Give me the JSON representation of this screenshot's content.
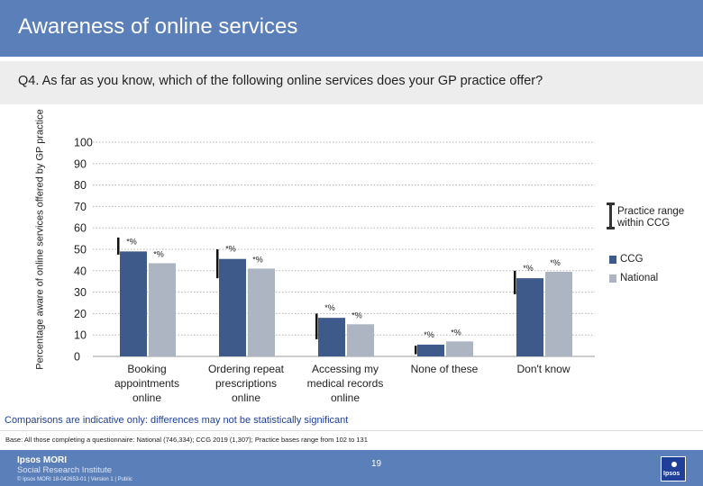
{
  "header": {
    "title": "Awareness of online services",
    "question": "Q4. As far as you know, which of the following online services does your GP practice offer?"
  },
  "chart_data": {
    "type": "bar",
    "ylabel": "Percentage aware of online services offered by GP practice",
    "ylim": [
      0,
      100
    ],
    "yticks": [
      0,
      10,
      20,
      30,
      40,
      50,
      60,
      70,
      80,
      90,
      100
    ],
    "categories": [
      "Booking appointments online",
      "Ordering repeat prescriptions online",
      "Accessing my medical records online",
      "None of these",
      "Don't know"
    ],
    "series": [
      {
        "name": "CCG",
        "color": "#3d5a8a",
        "values": [
          49,
          45.5,
          18,
          5.5,
          36.5
        ]
      },
      {
        "name": "National",
        "color": "#adb5c2",
        "values": [
          43.5,
          41,
          15,
          7,
          39.5
        ]
      }
    ],
    "range": {
      "label": "Practice range within CCG",
      "values": [
        [
          47.5,
          55.5
        ],
        [
          36.5,
          50
        ],
        [
          8,
          20
        ],
        [
          1,
          5
        ],
        [
          29,
          40
        ]
      ]
    },
    "data_labels": {
      "CCG": [
        "*%",
        "*%",
        "*%",
        "*%",
        "*%"
      ],
      "National": [
        "*%",
        "*%",
        "*%",
        "*%",
        "*%"
      ]
    },
    "grid": true,
    "legend_position": "right"
  },
  "footnote": "Comparisons are indicative only: differences may not be statistically significant",
  "base": "Base: All those completing a questionnaire: National (746,334); CCG 2019 (1,307); Practice bases range from 102 to 131",
  "footer": {
    "brand_line1": "Ipsos MORI",
    "brand_line2": "Social Research Institute",
    "copyright": "© Ipsos MORI    18-042653-01 | Version 1 | Public",
    "page_number": "19",
    "logo_text": "Ipsos"
  }
}
